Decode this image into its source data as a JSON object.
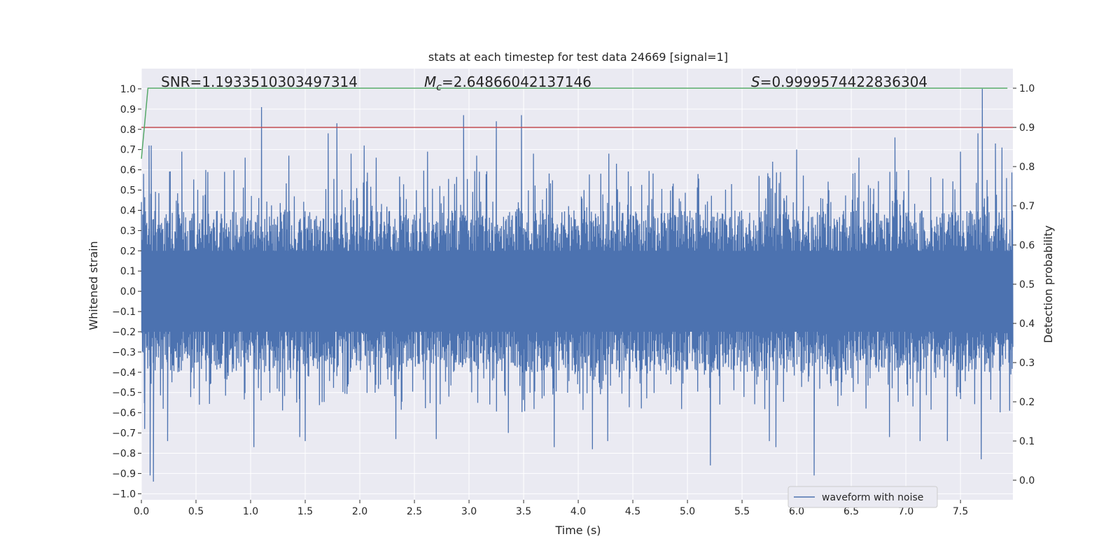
{
  "chart_data": {
    "type": "line",
    "title": "stats at each timestep for test data 24669 [signal=1]",
    "xlabel": "Time (s)",
    "ylabel": "Whitened strain",
    "ylabel_right": "Detection probability",
    "xlim": [
      0.0,
      7.98
    ],
    "ylim": [
      -1.03,
      1.1
    ],
    "ylim_right": [
      -0.05,
      1.05
    ],
    "xticks": [
      0.0,
      0.5,
      1.0,
      1.5,
      2.0,
      2.5,
      3.0,
      3.5,
      4.0,
      4.5,
      5.0,
      5.5,
      6.0,
      6.5,
      7.0,
      7.5
    ],
    "xtick_labels": [
      "0.0",
      "0.5",
      "1.0",
      "1.5",
      "2.0",
      "2.5",
      "3.0",
      "3.5",
      "4.0",
      "4.5",
      "5.0",
      "5.5",
      "6.0",
      "6.5",
      "7.0",
      "7.5"
    ],
    "yticks": [
      -1.0,
      -0.9,
      -0.8,
      -0.7,
      -0.6,
      -0.5,
      -0.4,
      -0.3,
      -0.2,
      -0.1,
      0.0,
      0.1,
      0.2,
      0.3,
      0.4,
      0.5,
      0.6,
      0.7,
      0.8,
      0.9,
      1.0
    ],
    "ytick_labels": [
      "−1.0",
      "−0.9",
      "−0.8",
      "−0.7",
      "−0.6",
      "−0.5",
      "−0.4",
      "−0.3",
      "−0.2",
      "−0.1",
      "0.0",
      "0.1",
      "0.2",
      "0.3",
      "0.4",
      "0.5",
      "0.6",
      "0.7",
      "0.8",
      "0.9",
      "1.0"
    ],
    "yticks_right": [
      0.0,
      0.1,
      0.2,
      0.3,
      0.4,
      0.5,
      0.6,
      0.7,
      0.8,
      0.9,
      1.0
    ],
    "ytick_labels_right": [
      "0.0",
      "0.1",
      "0.2",
      "0.3",
      "0.4",
      "0.5",
      "0.6",
      "0.7",
      "0.8",
      "0.9",
      "1.0"
    ],
    "grid": true,
    "legend": {
      "entries": [
        "waveform with noise"
      ],
      "location": "lower-right"
    },
    "annotations": {
      "snr": "SNR=1.1933510303497314",
      "mc_symbol": "M",
      "mc_subscript": "c",
      "mc_value": "=2.64866042137146",
      "s_symbol": "S",
      "s_value": "=0.9999574422836304"
    },
    "series": [
      {
        "name": "waveform with noise",
        "axis": "left",
        "color": "#4c72b0",
        "description": "dense noisy strain signal sampled over 0-7.98 s",
        "dense_band": [
          -0.2,
          0.2
        ],
        "typical_amplitude": 0.4,
        "peak_max": [
          [
            0.02,
            0.58
          ],
          [
            0.07,
            0.72
          ],
          [
            0.09,
            0.72
          ],
          [
            0.37,
            0.69
          ],
          [
            0.95,
            0.66
          ],
          [
            1.1,
            0.91
          ],
          [
            1.35,
            0.67
          ],
          [
            1.71,
            0.78
          ],
          [
            1.79,
            0.83
          ],
          [
            1.92,
            0.68
          ],
          [
            2.04,
            0.72
          ],
          [
            2.15,
            0.66
          ],
          [
            2.62,
            0.69
          ],
          [
            2.95,
            0.87
          ],
          [
            3.07,
            0.67
          ],
          [
            3.25,
            0.84
          ],
          [
            3.48,
            0.87
          ],
          [
            3.59,
            0.68
          ],
          [
            4.28,
            0.68
          ],
          [
            4.35,
            0.63
          ],
          [
            5.78,
            0.64
          ],
          [
            6.0,
            0.7
          ],
          [
            6.57,
            0.66
          ],
          [
            6.9,
            0.76
          ],
          [
            7.5,
            0.69
          ],
          [
            7.66,
            0.78
          ],
          [
            7.7,
            1.0
          ],
          [
            7.82,
            0.73
          ],
          [
            7.88,
            0.71
          ]
        ],
        "peak_min": [
          [
            0.03,
            -0.68
          ],
          [
            0.08,
            -0.91
          ],
          [
            0.11,
            -0.94
          ],
          [
            0.24,
            -0.74
          ],
          [
            1.03,
            -0.77
          ],
          [
            1.45,
            -0.72
          ],
          [
            1.5,
            -0.74
          ],
          [
            2.33,
            -0.73
          ],
          [
            2.7,
            -0.73
          ],
          [
            3.36,
            -0.7
          ],
          [
            3.78,
            -0.77
          ],
          [
            4.13,
            -0.78
          ],
          [
            4.27,
            -0.74
          ],
          [
            5.21,
            -0.86
          ],
          [
            5.75,
            -0.74
          ],
          [
            5.81,
            -0.77
          ],
          [
            6.16,
            -0.91
          ],
          [
            6.85,
            -0.72
          ],
          [
            7.13,
            -0.74
          ],
          [
            7.38,
            -0.74
          ],
          [
            7.69,
            -0.83
          ],
          [
            7.95,
            -0.59
          ]
        ]
      },
      {
        "name": "detection probability",
        "axis": "right",
        "color": "#55a868",
        "x": [
          0.0,
          0.03,
          0.06,
          0.09,
          0.2,
          1.0,
          2.0,
          3.0,
          4.0,
          5.0,
          6.0,
          7.0,
          7.93
        ],
        "values": [
          0.82,
          0.91,
          1.0,
          1.0,
          1.0,
          1.0,
          1.0,
          1.0,
          1.0,
          1.0,
          1.0,
          1.0,
          1.0
        ]
      },
      {
        "name": "threshold",
        "axis": "right",
        "color": "#c44e52",
        "x": [
          0.0,
          7.98
        ],
        "values": [
          0.9,
          0.9
        ]
      }
    ]
  }
}
